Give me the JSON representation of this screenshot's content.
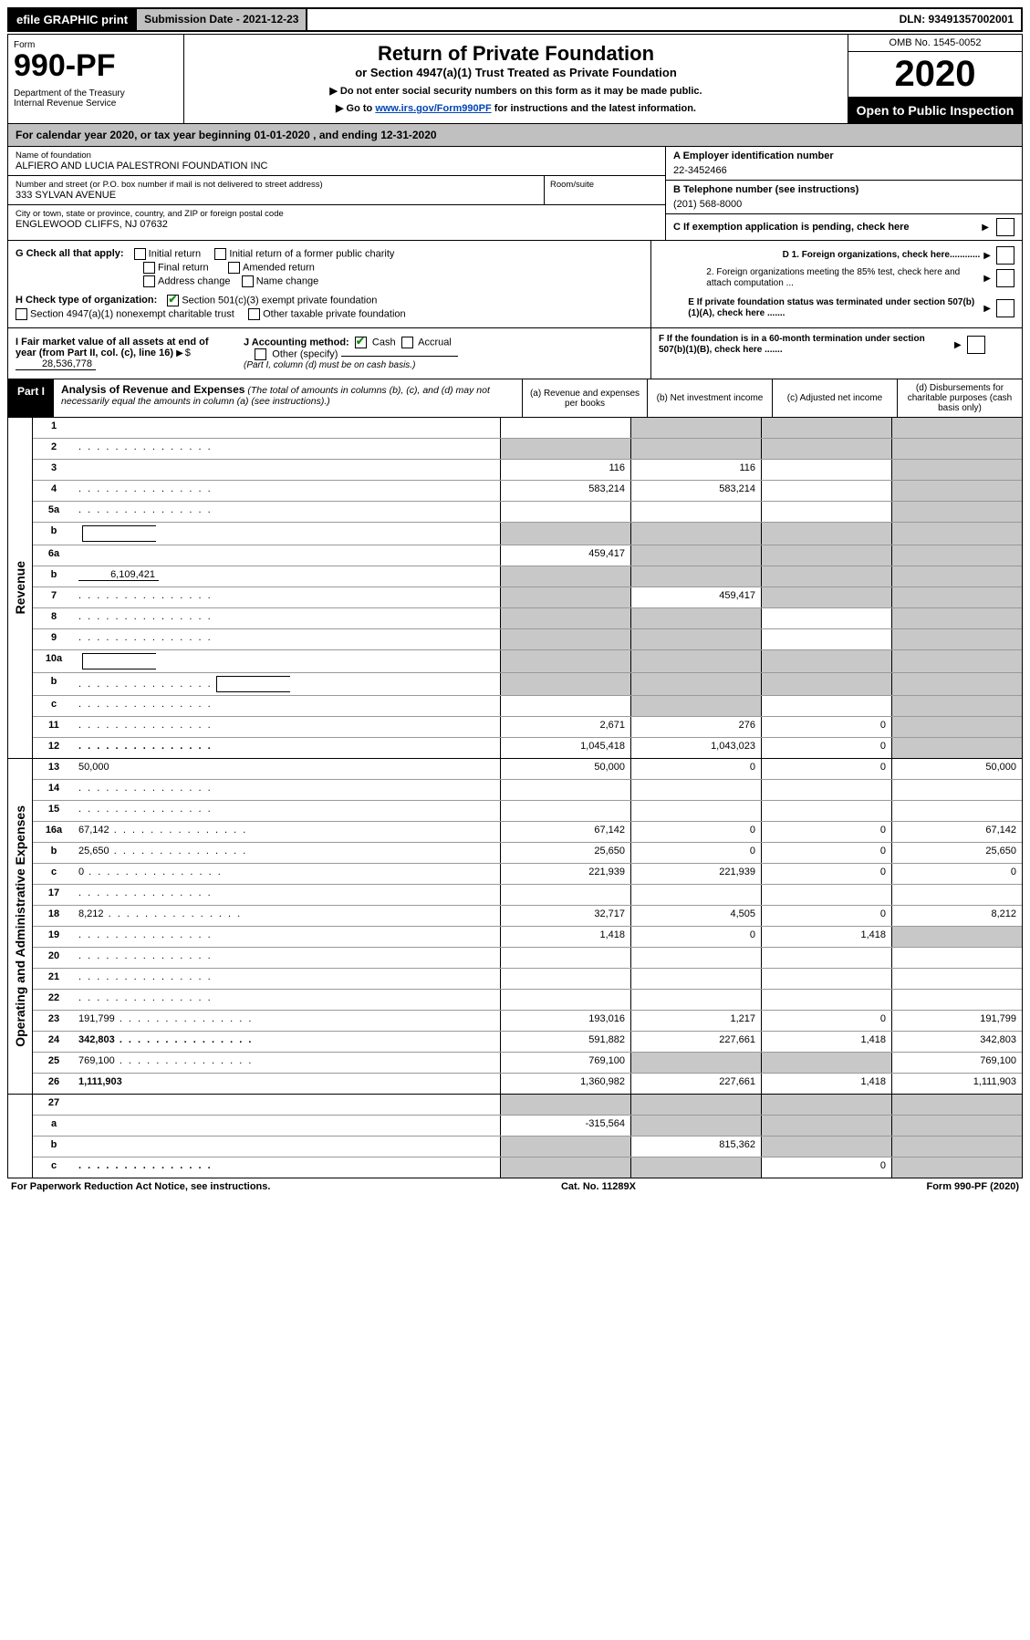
{
  "top": {
    "efile": "efile GRAPHIC print",
    "sub_label": "Submission Date - 2021-12-23",
    "dln": "DLN: 93491357002001"
  },
  "header": {
    "form_label": "Form",
    "form_number": "990-PF",
    "dept": "Department of the Treasury\nInternal Revenue Service",
    "title": "Return of Private Foundation",
    "subtitle": "or Section 4947(a)(1) Trust Treated as Private Foundation",
    "note1": "▶ Do not enter social security numbers on this form as it may be made public.",
    "note2_pre": "▶ Go to ",
    "note2_link": "www.irs.gov/Form990PF",
    "note2_post": " for instructions and the latest information.",
    "omb": "OMB No. 1545-0052",
    "year": "2020",
    "open": "Open to Public Inspection"
  },
  "calyear": {
    "pre": "For calendar year 2020, or tax year beginning ",
    "begin": "01-01-2020",
    "mid": " , and ending ",
    "end": "12-31-2020"
  },
  "info": {
    "name_label": "Name of foundation",
    "name": "ALFIERO AND LUCIA PALESTRONI FOUNDATION INC",
    "addr_label": "Number and street (or P.O. box number if mail is not delivered to street address)",
    "addr": "333 SYLVAN AVENUE",
    "room_label": "Room/suite",
    "city_label": "City or town, state or province, country, and ZIP or foreign postal code",
    "city": "ENGLEWOOD CLIFFS, NJ  07632",
    "a_label": "A Employer identification number",
    "a_val": "22-3452466",
    "b_label": "B Telephone number (see instructions)",
    "b_val": "(201) 568-8000",
    "c_label": "C If exemption application is pending, check here"
  },
  "g": {
    "lead": "G Check all that apply:",
    "opts": {
      "initial": "Initial return",
      "initial_former": "Initial return of a former public charity",
      "final": "Final return",
      "amended": "Amended return",
      "addr": "Address change",
      "name": "Name change"
    }
  },
  "d": {
    "d1": "D 1. Foreign organizations, check here............",
    "d2": "2. Foreign organizations meeting the 85% test, check here and attach computation ...",
    "e": "E  If private foundation status was terminated under section 507(b)(1)(A), check here .......",
    "f": "F  If the foundation is in a 60-month termination under section 507(b)(1)(B), check here ......."
  },
  "h": {
    "lead": "H Check type of organization:",
    "opt1": "Section 501(c)(3) exempt private foundation",
    "opt2": "Section 4947(a)(1) nonexempt charitable trust",
    "opt3": "Other taxable private foundation"
  },
  "i": {
    "lead": "I Fair market value of all assets at end of year (from Part II, col. (c), line 16)",
    "val": "28,536,778"
  },
  "j": {
    "lead": "J Accounting method:",
    "cash": "Cash",
    "accrual": "Accrual",
    "other": "Other (specify)",
    "note": "(Part I, column (d) must be on cash basis.)"
  },
  "part1": {
    "label": "Part I",
    "title": "Analysis of Revenue and Expenses",
    "note": " (The total of amounts in columns (b), (c), and (d) may not necessarily equal the amounts in column (a) (see instructions).)",
    "cols": {
      "a": "(a) Revenue and expenses per books",
      "b": "(b) Net investment income",
      "c": "(c) Adjusted net income",
      "d": "(d) Disbursements for charitable purposes (cash basis only)"
    }
  },
  "side": {
    "revenue": "Revenue",
    "expenses": "Operating and Administrative Expenses"
  },
  "rows": [
    {
      "n": "1",
      "d": "",
      "a": "",
      "b": "",
      "c": "",
      "agrey": false,
      "bgrey": true,
      "cgrey": true,
      "dgrey": true
    },
    {
      "n": "2",
      "d": "",
      "a": "",
      "b": "",
      "c": "",
      "agrey": true,
      "bgrey": true,
      "cgrey": true,
      "dgrey": true,
      "dots": true
    },
    {
      "n": "3",
      "d": "",
      "a": "116",
      "b": "116",
      "c": "",
      "dgrey": true
    },
    {
      "n": "4",
      "d": "",
      "a": "583,214",
      "b": "583,214",
      "c": "",
      "dgrey": true,
      "dots": true
    },
    {
      "n": "5a",
      "d": "",
      "a": "",
      "b": "",
      "c": "",
      "dgrey": true,
      "dots": true
    },
    {
      "n": "b",
      "d": "",
      "a": "",
      "b": "",
      "c": "",
      "agrey": true,
      "bgrey": true,
      "cgrey": true,
      "dgrey": true,
      "inline_box": true
    },
    {
      "n": "6a",
      "d": "",
      "a": "459,417",
      "b": "",
      "c": "",
      "bgrey": true,
      "cgrey": true,
      "dgrey": true
    },
    {
      "n": "b",
      "d": "",
      "a": "",
      "b": "",
      "c": "",
      "agrey": true,
      "bgrey": true,
      "cgrey": true,
      "dgrey": true,
      "underline": "6,109,421"
    },
    {
      "n": "7",
      "d": "",
      "a": "",
      "b": "459,417",
      "c": "",
      "agrey": true,
      "cgrey": true,
      "dgrey": true,
      "dots": true
    },
    {
      "n": "8",
      "d": "",
      "a": "",
      "b": "",
      "c": "",
      "agrey": true,
      "bgrey": true,
      "dgrey": true,
      "dots": true
    },
    {
      "n": "9",
      "d": "",
      "a": "",
      "b": "",
      "c": "",
      "agrey": true,
      "bgrey": true,
      "dgrey": true,
      "dots": true
    },
    {
      "n": "10a",
      "d": "",
      "a": "",
      "b": "",
      "c": "",
      "agrey": true,
      "bgrey": true,
      "cgrey": true,
      "dgrey": true,
      "inline_box": true
    },
    {
      "n": "b",
      "d": "",
      "a": "",
      "b": "",
      "c": "",
      "agrey": true,
      "bgrey": true,
      "cgrey": true,
      "dgrey": true,
      "inline_box": true,
      "dots": true
    },
    {
      "n": "c",
      "d": "",
      "a": "",
      "b": "",
      "c": "",
      "bgrey": true,
      "dgrey": true,
      "dots": true
    },
    {
      "n": "11",
      "d": "",
      "a": "2,671",
      "b": "276",
      "c": "0",
      "dgrey": true,
      "dots": true
    },
    {
      "n": "12",
      "d": "",
      "a": "1,045,418",
      "b": "1,043,023",
      "c": "0",
      "bold": true,
      "dgrey": true,
      "dots": true
    }
  ],
  "exp_rows": [
    {
      "n": "13",
      "d": "50,000",
      "a": "50,000",
      "b": "0",
      "c": "0"
    },
    {
      "n": "14",
      "d": "",
      "a": "",
      "b": "",
      "c": "",
      "dots": true
    },
    {
      "n": "15",
      "d": "",
      "a": "",
      "b": "",
      "c": "",
      "dots": true
    },
    {
      "n": "16a",
      "d": "67,142",
      "a": "67,142",
      "b": "0",
      "c": "0",
      "dots": true
    },
    {
      "n": "b",
      "d": "25,650",
      "a": "25,650",
      "b": "0",
      "c": "0",
      "dots": true
    },
    {
      "n": "c",
      "d": "0",
      "a": "221,939",
      "b": "221,939",
      "c": "0",
      "dots": true
    },
    {
      "n": "17",
      "d": "",
      "a": "",
      "b": "",
      "c": "",
      "dots": true
    },
    {
      "n": "18",
      "d": "8,212",
      "a": "32,717",
      "b": "4,505",
      "c": "0",
      "dots": true
    },
    {
      "n": "19",
      "d": "",
      "a": "1,418",
      "b": "0",
      "c": "1,418",
      "dgrey": true,
      "dots": true
    },
    {
      "n": "20",
      "d": "",
      "a": "",
      "b": "",
      "c": "",
      "dots": true
    },
    {
      "n": "21",
      "d": "",
      "a": "",
      "b": "",
      "c": "",
      "dots": true
    },
    {
      "n": "22",
      "d": "",
      "a": "",
      "b": "",
      "c": "",
      "dots": true
    },
    {
      "n": "23",
      "d": "191,799",
      "a": "193,016",
      "b": "1,217",
      "c": "0",
      "dots": true
    },
    {
      "n": "24",
      "d": "342,803",
      "a": "591,882",
      "b": "227,661",
      "c": "1,418",
      "bold": true,
      "dots": true
    },
    {
      "n": "25",
      "d": "769,100",
      "a": "769,100",
      "b": "",
      "c": "",
      "bgrey": true,
      "cgrey": true,
      "dots": true
    },
    {
      "n": "26",
      "d": "1,111,903",
      "a": "1,360,982",
      "b": "227,661",
      "c": "1,418",
      "bold": true
    }
  ],
  "final_rows": [
    {
      "n": "27",
      "d": "",
      "a": "",
      "b": "",
      "c": "",
      "agrey": true,
      "bgrey": true,
      "cgrey": true,
      "dgrey": true
    },
    {
      "n": "a",
      "d": "",
      "a": "-315,564",
      "b": "",
      "c": "",
      "bold": true,
      "bgrey": true,
      "cgrey": true,
      "dgrey": true
    },
    {
      "n": "b",
      "d": "",
      "a": "",
      "b": "815,362",
      "c": "",
      "bold": true,
      "agrey": true,
      "cgrey": true,
      "dgrey": true
    },
    {
      "n": "c",
      "d": "",
      "a": "",
      "b": "",
      "c": "0",
      "bold": true,
      "agrey": true,
      "bgrey": true,
      "dgrey": true,
      "dots": true
    }
  ],
  "footer": {
    "left": "For Paperwork Reduction Act Notice, see instructions.",
    "mid": "Cat. No. 11289X",
    "right": "Form 990-PF (2020)"
  }
}
